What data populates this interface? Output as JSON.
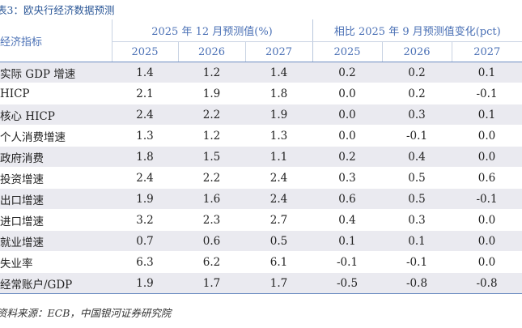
{
  "title": "表3：欧央行经济数据预测",
  "header": {
    "indicator_label": "经济指标",
    "group1_label": "2025 年 12 月预测值(%)",
    "group2_label": "相比 2025 年 9 月预测值变化(pct)",
    "years": [
      "2025",
      "2026",
      "2027",
      "2025",
      "2026",
      "2027"
    ]
  },
  "rows": [
    {
      "label": "实际 GDP 增速",
      "values": [
        "1.4",
        "1.2",
        "1.4",
        "0.2",
        "0.2",
        "0.1"
      ]
    },
    {
      "label": "HICP",
      "values": [
        "2.1",
        "1.9",
        "1.8",
        "0.0",
        "0.2",
        "-0.1"
      ]
    },
    {
      "label": "核心 HICP",
      "values": [
        "2.4",
        "2.2",
        "1.9",
        "0.0",
        "0.3",
        "0.1"
      ]
    },
    {
      "label": "个人消费增速",
      "values": [
        "1.3",
        "1.2",
        "1.3",
        "0.0",
        "-0.1",
        "0.0"
      ]
    },
    {
      "label": "政府消费",
      "values": [
        "1.8",
        "1.5",
        "1.1",
        "0.2",
        "0.4",
        "0.0"
      ]
    },
    {
      "label": "投资增速",
      "values": [
        "2.4",
        "2.2",
        "2.4",
        "0.3",
        "0.5",
        "0.6"
      ]
    },
    {
      "label": "出口增速",
      "values": [
        "1.9",
        "1.6",
        "2.4",
        "0.6",
        "0.5",
        "-0.1"
      ]
    },
    {
      "label": "进口增速",
      "values": [
        "3.2",
        "2.3",
        "2.7",
        "0.4",
        "0.3",
        "0.0"
      ]
    },
    {
      "label": "就业增速",
      "values": [
        "0.7",
        "0.6",
        "0.5",
        "0.1",
        "0.1",
        "0.0"
      ]
    },
    {
      "label": "失业率",
      "values": [
        "6.3",
        "6.2",
        "6.1",
        "-0.1",
        "-0.1",
        "0.0"
      ]
    },
    {
      "label": "经常账户/GDP",
      "values": [
        "1.9",
        "1.7",
        "1.7",
        "-0.5",
        "-0.8",
        "-0.8"
      ]
    }
  ],
  "source": "资料来源：ECB，中国银河证券研究院"
}
